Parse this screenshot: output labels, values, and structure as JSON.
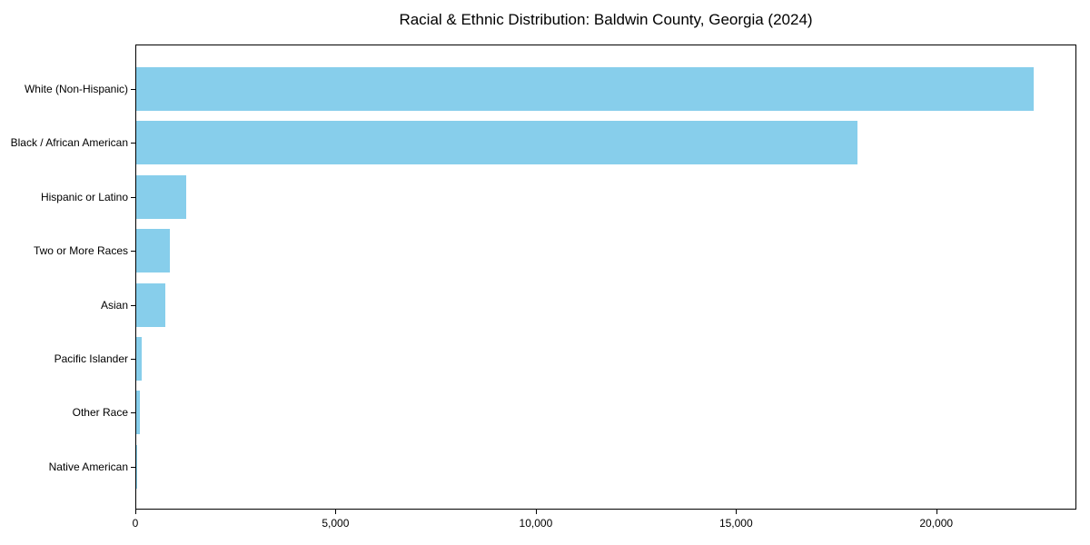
{
  "figure": {
    "background_color": "#ffffff",
    "text_color": "#000000"
  },
  "chart_data": {
    "type": "bar",
    "orientation": "horizontal",
    "title": "Racial & Ethnic Distribution: Baldwin County, Georgia (2024)",
    "categories": [
      "White (Non-Hispanic)",
      "Black / African American",
      "Hispanic or Latino",
      "Two or More Races",
      "Asian",
      "Pacific Islander",
      "Other Race",
      "Native American"
    ],
    "values": [
      22400,
      18000,
      1250,
      830,
      730,
      140,
      80,
      20
    ],
    "xlabel": "",
    "ylabel": "",
    "xlim": [
      0,
      23500
    ],
    "xticks": [
      0,
      5000,
      10000,
      15000,
      20000
    ],
    "xtick_labels": [
      "0",
      "5,000",
      "10,000",
      "15,000",
      "20,000"
    ],
    "bar_color": "#87CEEB",
    "spine_color": "#000000",
    "grid": false,
    "legend": null
  }
}
